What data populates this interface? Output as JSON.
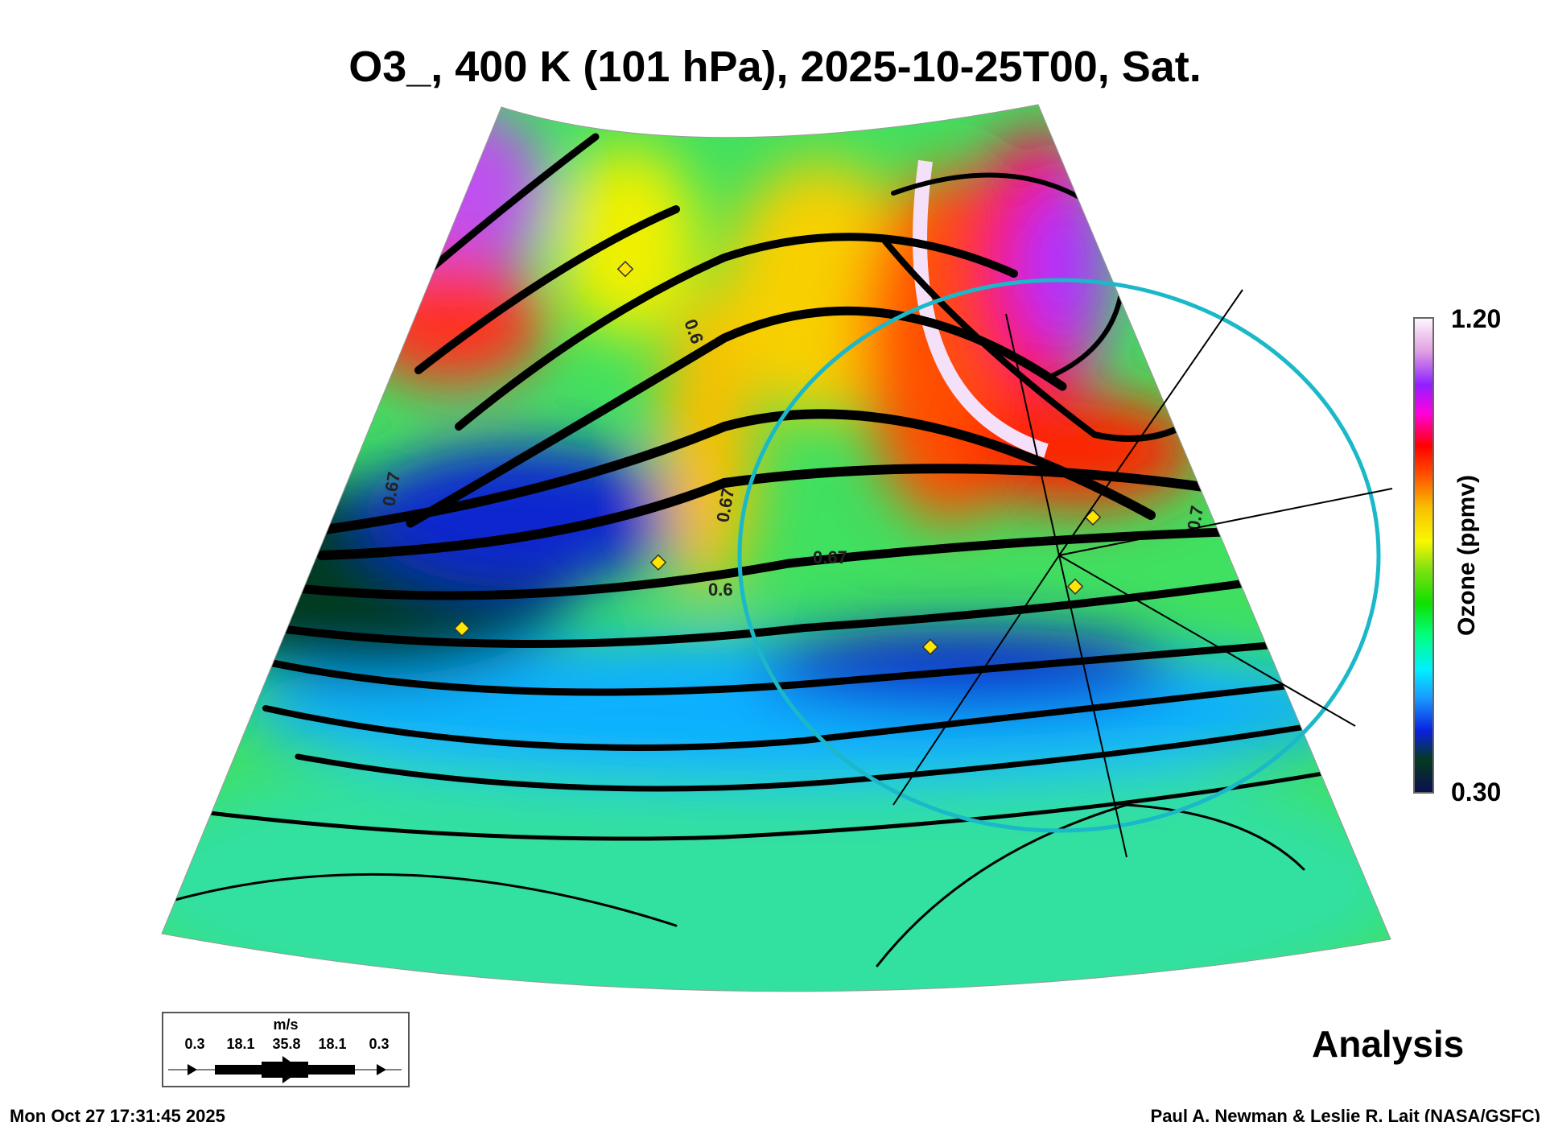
{
  "title": "O3_, 400 K (101 hPa), 2025-10-25T00, Sat.",
  "colorbar": {
    "max_label": "1.20",
    "min_label": "0.30",
    "axis_label": "Ozone (ppmv)",
    "colors": [
      "#0a0f50",
      "#063a20",
      "#0a20e0",
      "#1a9aff",
      "#00f0ff",
      "#00ff80",
      "#10e000",
      "#80e010",
      "#f8f800",
      "#f8c000",
      "#ff5000",
      "#ff0000",
      "#ff00e0",
      "#9020ff",
      "#e0a0e0",
      "#fff8ff"
    ]
  },
  "map": {
    "contour_labels": [
      "0.67",
      "0.67",
      "0.6",
      "0.67",
      "0.6",
      "0.67",
      "0.7"
    ],
    "product_label": "Analysis"
  },
  "wind_legend": {
    "unit": "m/s",
    "values": [
      "0.3",
      "18.1",
      "35.8",
      "18.1",
      "0.3"
    ]
  },
  "footer": {
    "timestamp": "Mon Oct 27 17:31:45 2025",
    "credit": "Paul A. Newman & Leslie R. Lait (NASA/GSFC)"
  }
}
